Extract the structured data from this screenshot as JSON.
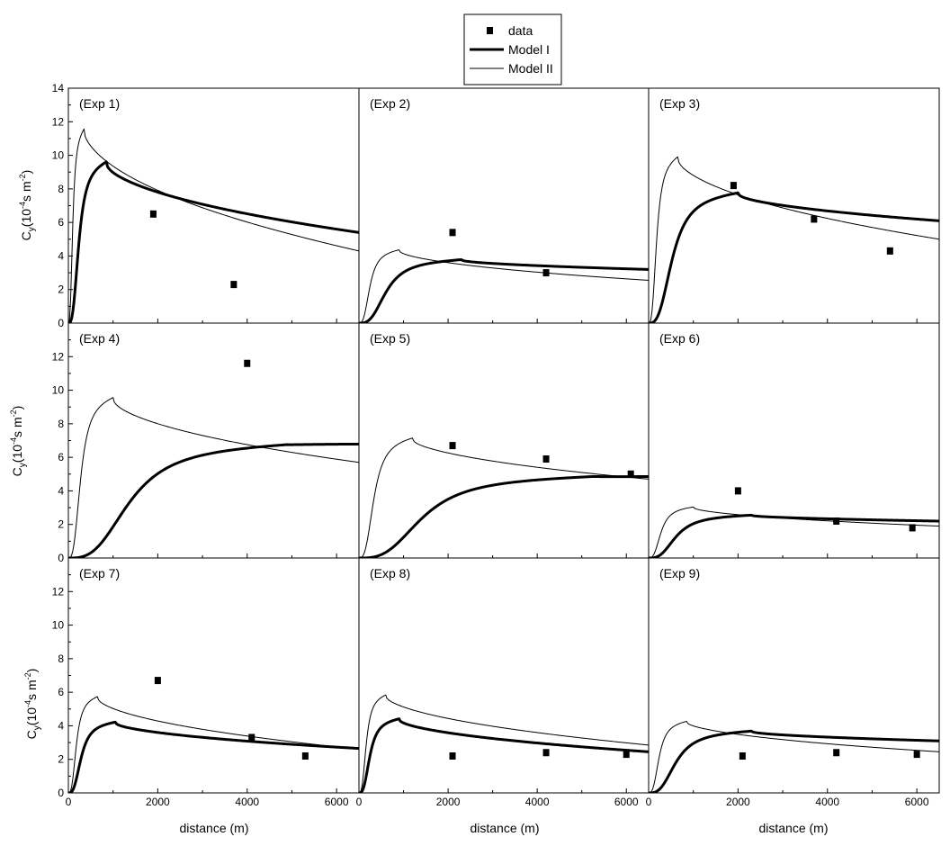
{
  "chart_data": {
    "type": "line",
    "grid": false,
    "legend_position": "top-center",
    "legend": [
      {
        "name": "data",
        "style": "square-marker"
      },
      {
        "name": "Model I",
        "style": "thick-line"
      },
      {
        "name": "Model II",
        "style": "thin-line"
      }
    ],
    "xlabel": "distance (m)",
    "ylabel_main": "C",
    "ylabel_sub": "y",
    "ylabel_paren": "(10",
    "ylabel_exp": "-4",
    "ylabel_s": "s m",
    "ylabel_exp2": "-2",
    "ylabel_close": ")",
    "xlim": [
      0,
      6500
    ],
    "ylim": [
      0,
      14
    ],
    "xticks": [
      0,
      2000,
      4000,
      6000
    ],
    "xtick_labels": [
      "0",
      "2000",
      "4000",
      "6000"
    ],
    "yticks": [
      0,
      2,
      4,
      6,
      8,
      10,
      12,
      14
    ],
    "ytick_labels": [
      "0",
      "2",
      "4",
      "6",
      "8",
      "10",
      "12",
      "14"
    ],
    "panels": [
      {
        "label": "(Exp 1)",
        "data_x": [
          1900,
          3700
        ],
        "data_y": [
          6.5,
          2.3
        ],
        "model1": {
          "peak": 9.8,
          "xpeak": 850,
          "rise": 230,
          "tail": 5.4
        },
        "model2": {
          "peak": 11.8,
          "xpeak": 350,
          "rise": 95,
          "tail": 4.3
        }
      },
      {
        "label": "(Exp 2)",
        "data_x": [
          2100,
          4200
        ],
        "data_y": [
          5.4,
          3.0
        ],
        "model1": {
          "peak": 3.85,
          "xpeak": 2300,
          "rise": 600,
          "tail": 3.2
        },
        "model2": {
          "peak": 4.45,
          "xpeak": 900,
          "rise": 240,
          "tail": 2.55
        }
      },
      {
        "label": "(Exp 3)",
        "data_x": [
          1900,
          3700,
          5400
        ],
        "data_y": [
          8.2,
          6.2,
          4.3
        ],
        "model1": {
          "peak": 7.9,
          "xpeak": 2000,
          "rise": 520,
          "tail": 6.1
        },
        "model2": {
          "peak": 10.1,
          "xpeak": 650,
          "rise": 175,
          "tail": 5.0
        }
      },
      {
        "label": "(Exp 4)",
        "data_x": [
          4000
        ],
        "data_y": [
          11.6
        ],
        "model1": {
          "peak": 6.9,
          "xpeak": 4900,
          "rise": 1350,
          "tail": 6.85
        },
        "model2": {
          "peak": 9.75,
          "xpeak": 1000,
          "rise": 270,
          "tail": 5.7
        }
      },
      {
        "label": "(Exp 5)",
        "data_x": [
          2100,
          4200,
          6100
        ],
        "data_y": [
          6.7,
          5.9,
          5.0
        ],
        "model1": {
          "peak": 4.95,
          "xpeak": 5300,
          "rise": 1400,
          "tail": 4.9
        },
        "model2": {
          "peak": 7.3,
          "xpeak": 1200,
          "rise": 330,
          "tail": 4.7
        }
      },
      {
        "label": "(Exp 6)",
        "data_x": [
          2000,
          4200,
          5900
        ],
        "data_y": [
          4.0,
          2.2,
          1.8
        ],
        "model1": {
          "peak": 2.6,
          "xpeak": 2300,
          "rise": 600,
          "tail": 2.2
        },
        "model2": {
          "peak": 3.1,
          "xpeak": 1000,
          "rise": 270,
          "tail": 1.9
        }
      },
      {
        "label": "(Exp 7)",
        "data_x": [
          2000,
          4100,
          5300
        ],
        "data_y": [
          6.7,
          3.3,
          2.2
        ],
        "model1": {
          "peak": 4.3,
          "xpeak": 1050,
          "rise": 280,
          "tail": 2.65
        },
        "model2": {
          "peak": 5.85,
          "xpeak": 650,
          "rise": 175,
          "tail": 2.6
        }
      },
      {
        "label": "(Exp 8)",
        "data_x": [
          2100,
          4200,
          6000
        ],
        "data_y": [
          2.2,
          2.4,
          2.3
        ],
        "model1": {
          "peak": 4.5,
          "xpeak": 900,
          "rise": 240,
          "tail": 2.45
        },
        "model2": {
          "peak": 5.95,
          "xpeak": 600,
          "rise": 160,
          "tail": 2.85
        }
      },
      {
        "label": "(Exp 9)",
        "data_x": [
          2100,
          4200,
          6000
        ],
        "data_y": [
          2.2,
          2.4,
          2.3
        ],
        "model1": {
          "peak": 3.75,
          "xpeak": 2300,
          "rise": 600,
          "tail": 3.1
        },
        "model2": {
          "peak": 4.35,
          "xpeak": 850,
          "rise": 230,
          "tail": 2.45
        }
      }
    ]
  }
}
